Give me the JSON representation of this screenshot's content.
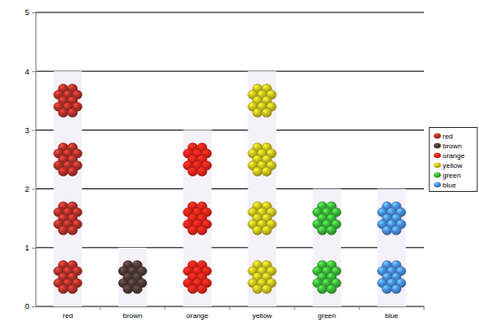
{
  "chart_data": {
    "type": "bar",
    "categories": [
      "red",
      "brown",
      "orange",
      "yellow",
      "green",
      "blue"
    ],
    "values": [
      4,
      1,
      3,
      4,
      2,
      2
    ],
    "colors": [
      "#b5312a",
      "#4d3a36",
      "#e3241a",
      "#cfc61f",
      "#3cb83a",
      "#4a8ee0"
    ],
    "ylim": [
      0,
      5
    ],
    "yticks": [
      0,
      1,
      2,
      3,
      4,
      5
    ],
    "grid": true,
    "legend": "right"
  }
}
